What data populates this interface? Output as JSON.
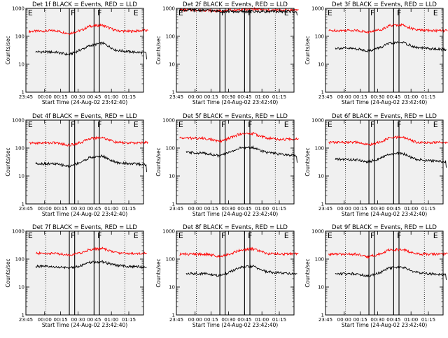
{
  "figure": {
    "background": "#ffffff",
    "plot_background": "#f0f0f0",
    "colors": {
      "events": "#000000",
      "lld": "#ff0000"
    }
  },
  "chart_data": [
    {
      "type": "line",
      "title": "Det 1f BLACK = Events, RED = LLD",
      "xlabel": "Start Time (24-Aug-02 23:42:40)",
      "ylabel": "Counts/sec",
      "x_tick_labels": [
        "23:45",
        "00:00",
        "00:15",
        "00:30",
        "00:45",
        "01:00",
        "01:15"
      ],
      "y_tick_labels": [
        "1",
        "10",
        "100",
        "1000"
      ],
      "yscale": "log",
      "ylim": [
        1,
        1000
      ],
      "grid": false,
      "flags": [
        "E",
        "F",
        "F",
        "E"
      ],
      "series": [
        {
          "key": "lld",
          "color": "#ff0000",
          "x": [
            "23:45",
            "00:05",
            "00:15",
            "00:25",
            "00:30",
            "00:40",
            "00:50",
            "01:00",
            "01:10",
            "01:14"
          ],
          "values": [
            150,
            160,
            125,
            170,
            230,
            250,
            160,
            150,
            160,
            160
          ]
        },
        {
          "key": "events",
          "color": "#000000",
          "x": [
            "23:50",
            "00:05",
            "00:15",
            "00:25",
            "00:30",
            "00:40",
            "00:50",
            "01:00",
            "01:10",
            "01:13",
            "01:13"
          ],
          "values": [
            28,
            27,
            22,
            35,
            45,
            58,
            32,
            28,
            26,
            25,
            15
          ]
        }
      ]
    },
    {
      "type": "line",
      "title": "Det 2f BLACK = Events, RED = LLD",
      "xlabel": "Start Time (24-Aug-02 23:42:40)",
      "ylabel": "Counts/sec",
      "x_tick_labels": [
        "23:45",
        "00:00",
        "00:15",
        "00:30",
        "00:45",
        "01:00",
        "01:15"
      ],
      "y_tick_labels": [
        "1",
        "10",
        "100",
        "1000"
      ],
      "yscale": "log",
      "ylim": [
        1,
        1000
      ],
      "grid": false,
      "flags": [
        "E",
        "F",
        "F",
        "E"
      ],
      "series": [
        {
          "key": "lld",
          "color": "#ff0000",
          "x": [
            "23:45",
            "00:05",
            "00:15",
            "00:30",
            "00:40",
            "00:50",
            "01:00",
            "01:14"
          ],
          "values": [
            880,
            860,
            800,
            890,
            950,
            860,
            860,
            880
          ]
        },
        {
          "key": "events",
          "color": "#000000",
          "x": [
            "23:45",
            "00:05",
            "00:15",
            "00:30",
            "00:40",
            "00:50",
            "01:00",
            "01:13",
            "01:13"
          ],
          "values": [
            870,
            850,
            780,
            760,
            770,
            770,
            770,
            770,
            560
          ]
        }
      ]
    },
    {
      "type": "line",
      "title": "Det 3f BLACK = Events, RED = LLD",
      "xlabel": "Start Time (24-Aug-02 23:42:40)",
      "ylabel": "Counts/sec",
      "x_tick_labels": [
        "23:45",
        "00:00",
        "00:15",
        "00:30",
        "00:45",
        "01:00",
        "01:15"
      ],
      "y_tick_labels": [
        "1",
        "10",
        "100",
        "1000"
      ],
      "yscale": "log",
      "ylim": [
        1,
        1000
      ],
      "grid": false,
      "flags": [
        "E",
        "F",
        "F",
        "E"
      ],
      "series": [
        {
          "key": "lld",
          "color": "#ff0000",
          "x": [
            "23:45",
            "00:05",
            "00:15",
            "00:25",
            "00:30",
            "00:40",
            "00:50",
            "01:00",
            "01:10",
            "01:14"
          ],
          "values": [
            160,
            165,
            140,
            180,
            240,
            260,
            170,
            160,
            160,
            160
          ]
        },
        {
          "key": "events",
          "color": "#000000",
          "x": [
            "23:50",
            "00:05",
            "00:15",
            "00:25",
            "00:30",
            "00:40",
            "00:50",
            "01:00",
            "01:10",
            "01:13"
          ],
          "values": [
            38,
            36,
            30,
            42,
            55,
            62,
            40,
            36,
            34,
            34
          ]
        }
      ]
    },
    {
      "type": "line",
      "title": "Det 4f BLACK = Events, RED = LLD",
      "xlabel": "Start Time (24-Aug-02 23:42:40)",
      "ylabel": "Counts/sec",
      "x_tick_labels": [
        "23:45",
        "00:00",
        "00:15",
        "00:30",
        "00:45",
        "01:00",
        "01:15"
      ],
      "y_tick_labels": [
        "1",
        "10",
        "100",
        "1000"
      ],
      "yscale": "log",
      "ylim": [
        1,
        1000
      ],
      "grid": false,
      "flags": [
        "E",
        "F",
        "F",
        "E"
      ],
      "series": [
        {
          "key": "lld",
          "color": "#ff0000",
          "x": [
            "23:45",
            "00:05",
            "00:15",
            "00:25",
            "00:30",
            "00:40",
            "00:50",
            "01:00",
            "01:10",
            "01:14"
          ],
          "values": [
            150,
            155,
            125,
            165,
            220,
            240,
            160,
            150,
            155,
            160
          ]
        },
        {
          "key": "events",
          "color": "#000000",
          "x": [
            "23:50",
            "00:05",
            "00:15",
            "00:25",
            "00:30",
            "00:40",
            "00:50",
            "01:00",
            "01:10",
            "01:13",
            "01:13"
          ],
          "values": [
            28,
            27,
            22,
            33,
            45,
            52,
            30,
            28,
            26,
            25,
            14
          ]
        }
      ]
    },
    {
      "type": "line",
      "title": "Det 5f BLACK = Events, RED = LLD",
      "xlabel": "Start Time (24-Aug-02 23:42:40)",
      "ylabel": "Counts/sec",
      "x_tick_labels": [
        "23:45",
        "00:00",
        "00:15",
        "00:30",
        "00:45",
        "01:00",
        "01:15"
      ],
      "y_tick_labels": [
        "1",
        "10",
        "100",
        "1000"
      ],
      "yscale": "log",
      "ylim": [
        1,
        1000
      ],
      "grid": false,
      "flags": [
        "E",
        "F",
        "F",
        "E"
      ],
      "series": [
        {
          "key": "lld",
          "color": "#ff0000",
          "x": [
            "23:45",
            "00:05",
            "00:15",
            "00:25",
            "00:30",
            "00:40",
            "00:50",
            "01:00",
            "01:10",
            "01:14"
          ],
          "values": [
            230,
            220,
            170,
            250,
            320,
            330,
            230,
            200,
            210,
            220
          ]
        },
        {
          "key": "events",
          "color": "#000000",
          "x": [
            "23:50",
            "00:05",
            "00:15",
            "00:25",
            "00:30",
            "00:40",
            "00:50",
            "01:00",
            "01:10",
            "01:13",
            "01:13"
          ],
          "values": [
            70,
            65,
            52,
            80,
            100,
            105,
            70,
            60,
            55,
            55,
            30
          ]
        }
      ]
    },
    {
      "type": "line",
      "title": "Det 6f BLACK = Events, RED = LLD",
      "xlabel": "Start Time (24-Aug-02 23:42:40)",
      "ylabel": "Counts/sec",
      "x_tick_labels": [
        "23:45",
        "00:00",
        "00:15",
        "00:30",
        "00:45",
        "01:00",
        "01:15"
      ],
      "y_tick_labels": [
        "1",
        "10",
        "100",
        "1000"
      ],
      "yscale": "log",
      "ylim": [
        1,
        1000
      ],
      "grid": false,
      "flags": [
        "E",
        "F",
        "F",
        "E"
      ],
      "series": [
        {
          "key": "lld",
          "color": "#ff0000",
          "x": [
            "23:45",
            "00:05",
            "00:15",
            "00:25",
            "00:30",
            "00:40",
            "00:50",
            "01:00",
            "01:10",
            "01:14"
          ],
          "values": [
            160,
            160,
            130,
            170,
            230,
            250,
            165,
            155,
            160,
            165
          ]
        },
        {
          "key": "events",
          "color": "#000000",
          "x": [
            "23:50",
            "00:05",
            "00:15",
            "00:25",
            "00:30",
            "00:40",
            "00:50",
            "01:00",
            "01:10",
            "01:13",
            "01:13"
          ],
          "values": [
            40,
            38,
            32,
            45,
            60,
            65,
            40,
            35,
            33,
            33,
            20
          ]
        }
      ]
    },
    {
      "type": "line",
      "title": "Det 7f BLACK = Events, RED = LLD",
      "xlabel": "Start Time (24-Aug-02 23:42:40)",
      "ylabel": "Counts/sec",
      "x_tick_labels": [
        "23:45",
        "00:00",
        "00:15",
        "00:30",
        "00:45",
        "01:00",
        "01:15"
      ],
      "y_tick_labels": [
        "1",
        "10",
        "100",
        "1000"
      ],
      "yscale": "log",
      "ylim": [
        1,
        1000
      ],
      "grid": false,
      "flags": [
        "E",
        "F",
        "F",
        "E"
      ],
      "series": [
        {
          "key": "lld",
          "color": "#ff0000",
          "x": [
            "23:50",
            "00:05",
            "00:15",
            "00:25",
            "00:30",
            "00:40",
            "00:50",
            "01:00",
            "01:10",
            "01:13"
          ],
          "values": [
            160,
            160,
            140,
            170,
            220,
            240,
            170,
            160,
            160,
            165
          ]
        },
        {
          "key": "events",
          "color": "#000000",
          "x": [
            "23:50",
            "00:05",
            "00:15",
            "00:25",
            "00:30",
            "00:40",
            "00:50",
            "01:00",
            "01:10",
            "01:13"
          ],
          "values": [
            55,
            52,
            48,
            60,
            75,
            80,
            60,
            55,
            52,
            52
          ]
        }
      ]
    },
    {
      "type": "line",
      "title": "Det 8f BLACK = Events, RED = LLD",
      "xlabel": "Start Time (24-Aug-02 23:42:40)",
      "ylabel": "Counts/sec",
      "x_tick_labels": [
        "23:45",
        "00:00",
        "00:15",
        "00:30",
        "00:45",
        "01:00",
        "01:15"
      ],
      "y_tick_labels": [
        "1",
        "10",
        "100",
        "1000"
      ],
      "yscale": "log",
      "ylim": [
        1,
        1000
      ],
      "grid": false,
      "flags": [
        "E",
        "F",
        "F",
        "E"
      ],
      "series": [
        {
          "key": "lld",
          "color": "#ff0000",
          "x": [
            "23:45",
            "00:05",
            "00:15",
            "00:25",
            "00:30",
            "00:40",
            "00:50",
            "01:00",
            "01:10",
            "01:14"
          ],
          "values": [
            150,
            150,
            125,
            165,
            210,
            230,
            160,
            150,
            155,
            160
          ]
        },
        {
          "key": "events",
          "color": "#000000",
          "x": [
            "23:50",
            "00:05",
            "00:15",
            "00:25",
            "00:30",
            "00:40",
            "00:50",
            "01:00",
            "01:10",
            "01:13"
          ],
          "values": [
            30,
            30,
            25,
            38,
            50,
            55,
            35,
            32,
            30,
            30
          ]
        }
      ]
    },
    {
      "type": "line",
      "title": "Det 9f BLACK = Events, RED = LLD",
      "xlabel": "Start Time (24-Aug-02 23:42:40)",
      "ylabel": "Counts/sec",
      "x_tick_labels": [
        "23:45",
        "00:00",
        "00:15",
        "00:30",
        "00:45",
        "01:00",
        "01:15"
      ],
      "y_tick_labels": [
        "1",
        "10",
        "100",
        "1000"
      ],
      "yscale": "log",
      "ylim": [
        1,
        1000
      ],
      "grid": false,
      "flags": [
        "E",
        "F",
        "F",
        "E"
      ],
      "series": [
        {
          "key": "lld",
          "color": "#ff0000",
          "x": [
            "23:45",
            "00:05",
            "00:15",
            "00:25",
            "00:30",
            "00:40",
            "00:50",
            "01:00",
            "01:10",
            "01:14"
          ],
          "values": [
            150,
            150,
            120,
            160,
            210,
            225,
            155,
            150,
            150,
            155
          ]
        },
        {
          "key": "events",
          "color": "#000000",
          "x": [
            "23:50",
            "00:05",
            "00:15",
            "00:25",
            "00:30",
            "00:40",
            "00:50",
            "01:00",
            "01:10",
            "01:13",
            "01:13"
          ],
          "values": [
            30,
            30,
            25,
            35,
            48,
            52,
            34,
            30,
            28,
            28,
            18
          ]
        }
      ]
    }
  ]
}
